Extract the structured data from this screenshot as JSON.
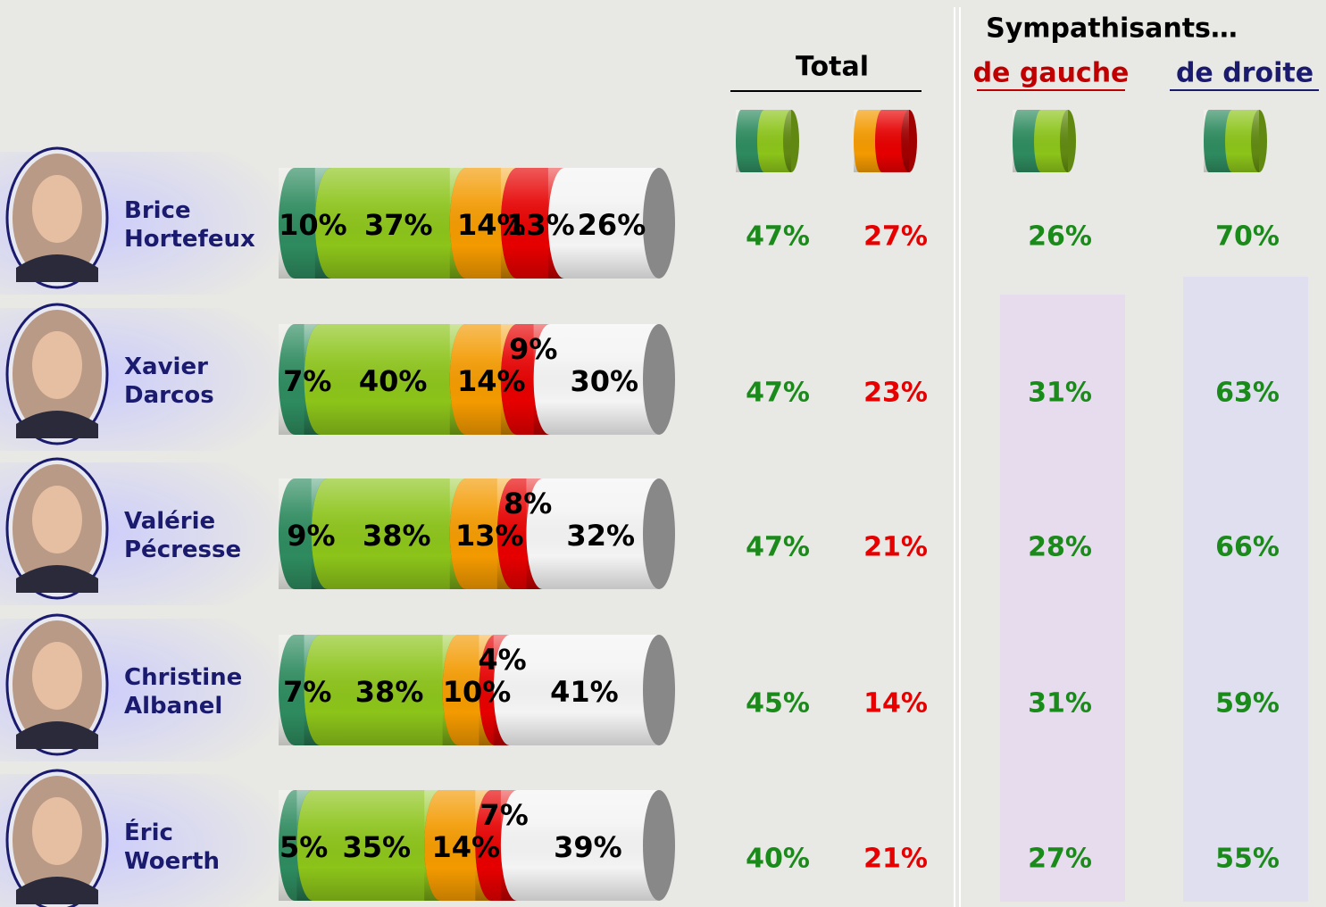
{
  "chart_data": {
    "type": "bar",
    "orientation": "horizontal",
    "stacked": true,
    "categories": [
      "Brice Hortefeux",
      "Xavier Darcos",
      "Valérie Pécresse",
      "Christine Albanel",
      "Éric Woerth"
    ],
    "xlim": [
      0,
      100
    ],
    "series": [
      {
        "color": "#2e8b5f",
        "values": [
          10,
          7,
          9,
          7,
          5
        ],
        "value_labels": [
          "10%",
          "7%",
          "9%",
          "7%",
          "5%"
        ]
      },
      {
        "color": "#8cc41a",
        "values": [
          37,
          40,
          38,
          38,
          35
        ],
        "value_labels": [
          "37%",
          "40%",
          "38%",
          "38%",
          "35%"
        ]
      },
      {
        "color": "#f39a00",
        "values": [
          14,
          14,
          13,
          10,
          14
        ],
        "value_labels": [
          "14%",
          "14%",
          "13%",
          "10%",
          "14%"
        ]
      },
      {
        "color": "#e60000",
        "values": [
          13,
          9,
          8,
          4,
          7
        ],
        "value_labels": [
          "13%",
          "9%",
          "8%",
          "4%",
          "7%"
        ]
      },
      {
        "color": "#f4f4f4",
        "values": [
          26,
          30,
          32,
          41,
          39
        ],
        "value_labels": [
          "26%",
          "30%",
          "32%",
          "41%",
          "39%"
        ]
      }
    ]
  },
  "table": {
    "total": "Total",
    "sympathisants": "Sympathisants…",
    "gauche": "de gauche",
    "droite": "de droite",
    "columns": [
      {
        "color": "#1a8a1a",
        "values": [
          "47%",
          "47%",
          "47%",
          "45%",
          "40%"
        ]
      },
      {
        "color": "#e60000",
        "values": [
          "27%",
          "23%",
          "21%",
          "14%",
          "21%"
        ]
      },
      {
        "color": "#1a8a1a",
        "values": [
          "26%",
          "31%",
          "28%",
          "31%",
          "27%"
        ]
      },
      {
        "color": "#1a8a1a",
        "values": [
          "70%",
          "63%",
          "66%",
          "59%",
          "55%"
        ]
      }
    ]
  }
}
